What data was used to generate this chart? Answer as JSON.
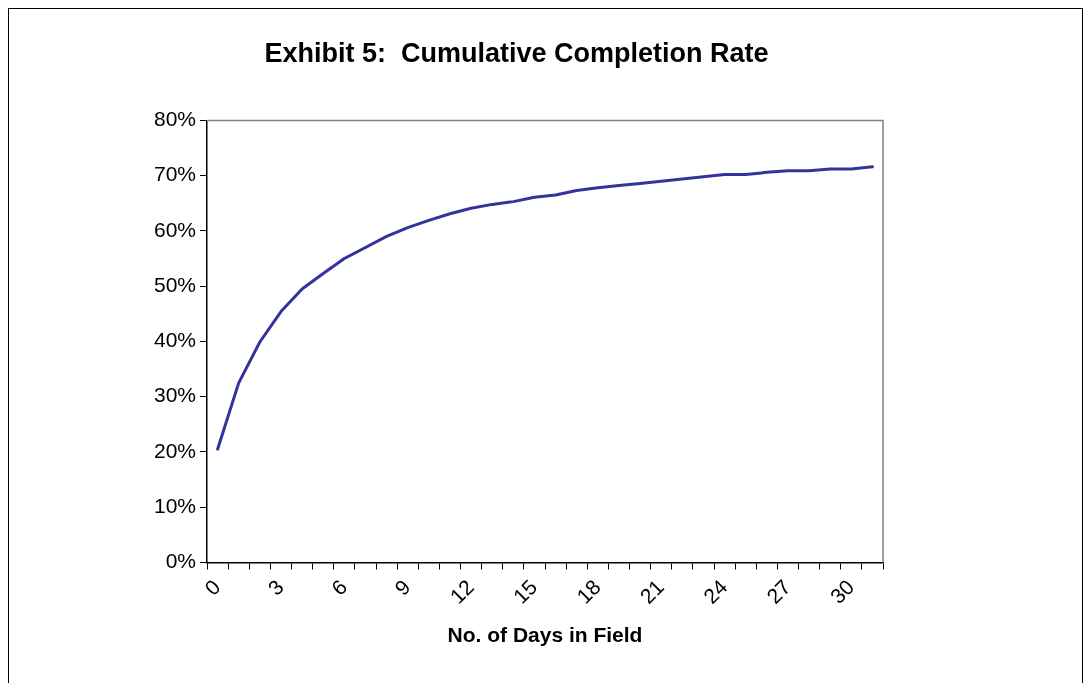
{
  "chart_data": {
    "type": "line",
    "title": "Exhibit 5:  Cumulative Completion Rate",
    "xlabel": "No. of Days in Field",
    "categories": [
      "0",
      null,
      null,
      "3",
      null,
      null,
      "6",
      null,
      null,
      "9",
      null,
      null,
      "12",
      null,
      null,
      "15",
      null,
      null,
      "18",
      null,
      null,
      "21",
      null,
      null,
      "24",
      null,
      null,
      "27",
      null,
      null,
      "30",
      null
    ],
    "series": [
      {
        "color": "#333399",
        "values": [
          20.5,
          32.5,
          39.9,
          45.4,
          49.5,
          52.3,
          55.0,
          57.0,
          59.0,
          60.6,
          61.9,
          63.1,
          64.1,
          64.8,
          65.3,
          66.1,
          66.5,
          67.3,
          67.8,
          68.2,
          68.6,
          69.0,
          69.4,
          69.8,
          70.2,
          70.2,
          70.6,
          70.9,
          70.9,
          71.2,
          71.2,
          71.6
        ]
      }
    ],
    "ylim": [
      0,
      80
    ],
    "yticks": [
      {
        "value": 0,
        "label": "0%"
      },
      {
        "value": 10,
        "label": "10%"
      },
      {
        "value": 20,
        "label": "20%"
      },
      {
        "value": 30,
        "label": "30%"
      },
      {
        "value": 40,
        "label": "40%"
      },
      {
        "value": 50,
        "label": "50%"
      },
      {
        "value": 60,
        "label": "60%"
      },
      {
        "value": 70,
        "label": "70%"
      },
      {
        "value": 80,
        "label": "80%"
      }
    ],
    "grid": false,
    "legend": false,
    "marker": "none",
    "line_style": "solid"
  }
}
